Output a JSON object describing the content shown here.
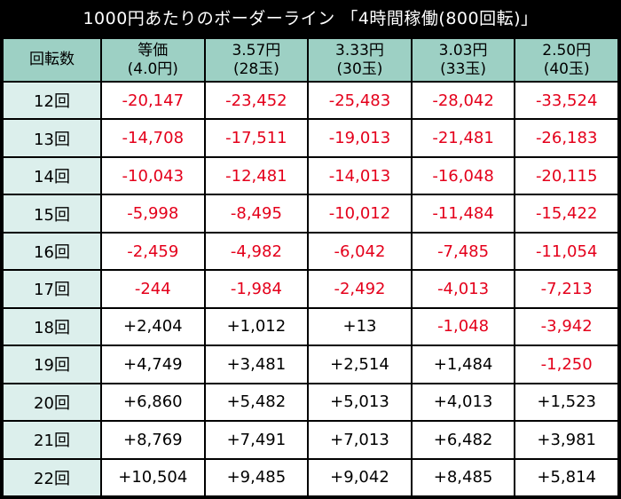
{
  "title": "1000円あたりのボーダーライン 「4時間稼働(800回転)」",
  "header": {
    "rowLabel": "回転数",
    "columns": [
      {
        "line1": "等価",
        "line2": "(4.0円)"
      },
      {
        "line1": "3.57円",
        "line2": "(28玉)"
      },
      {
        "line1": "3.33円",
        "line2": "(30玉)"
      },
      {
        "line1": "3.03円",
        "line2": "(33玉)"
      },
      {
        "line1": "2.50円",
        "line2": "(40玉)"
      }
    ]
  },
  "rows": [
    {
      "label": "12回",
      "values": [
        "-20,147",
        "-23,452",
        "-25,483",
        "-28,042",
        "-33,524"
      ]
    },
    {
      "label": "13回",
      "values": [
        "-14,708",
        "-17,511",
        "-19,013",
        "-21,481",
        "-26,183"
      ]
    },
    {
      "label": "14回",
      "values": [
        "-10,043",
        "-12,481",
        "-14,013",
        "-16,048",
        "-20,115"
      ]
    },
    {
      "label": "15回",
      "values": [
        "-5,998",
        "-8,495",
        "-10,012",
        "-11,484",
        "-15,422"
      ]
    },
    {
      "label": "16回",
      "values": [
        "-2,459",
        "-4,982",
        "-6,042",
        "-7,485",
        "-11,054"
      ]
    },
    {
      "label": "17回",
      "values": [
        "-244",
        "-1,984",
        "-2,492",
        "-4,013",
        "-7,213"
      ]
    },
    {
      "label": "18回",
      "values": [
        "+2,404",
        "+1,012",
        "+13",
        "-1,048",
        "-3,942"
      ]
    },
    {
      "label": "19回",
      "values": [
        "+4,749",
        "+3,481",
        "+2,514",
        "+1,484",
        "-1,250"
      ]
    },
    {
      "label": "20回",
      "values": [
        "+6,860",
        "+5,482",
        "+5,013",
        "+4,013",
        "+1,523"
      ]
    },
    {
      "label": "21回",
      "values": [
        "+8,769",
        "+7,491",
        "+7,013",
        "+6,482",
        "+3,981"
      ]
    },
    {
      "label": "22回",
      "values": [
        "+10,504",
        "+9,485",
        "+9,042",
        "+8,485",
        "+5,814"
      ]
    }
  ],
  "colors": {
    "negative": "#e4001b",
    "header_bg": "#9dd0c4",
    "row_label_bg": "#dcefec",
    "border": "#000000"
  }
}
